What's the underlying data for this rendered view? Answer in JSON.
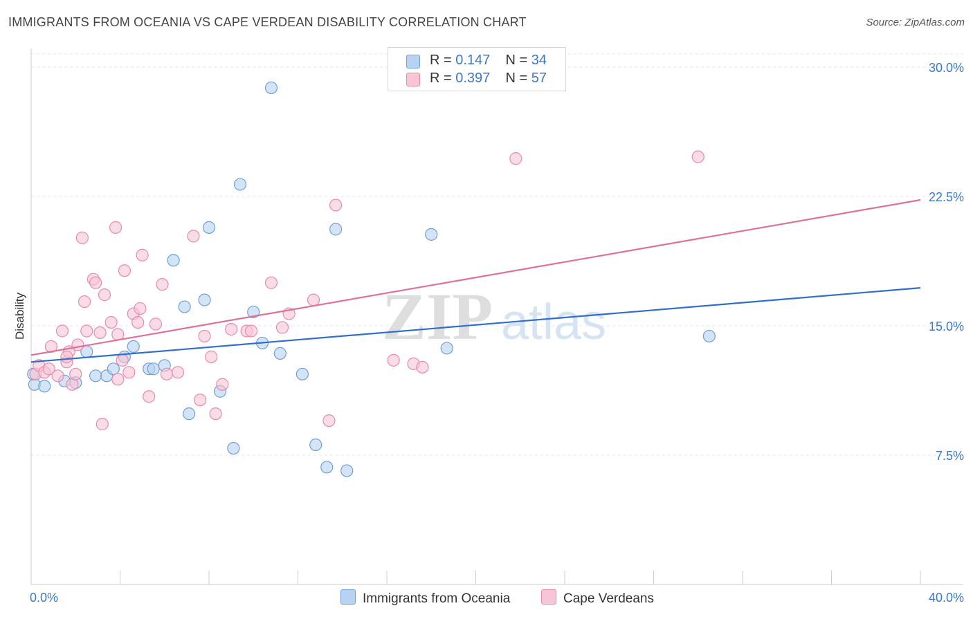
{
  "header": {
    "title": "IMMIGRANTS FROM OCEANIA VS CAPE VERDEAN DISABILITY CORRELATION CHART",
    "source": "Source: ZipAtlas.com"
  },
  "legend": {
    "r_label": "R =",
    "n_label": "N =",
    "rows": [
      {
        "r": "0.147",
        "n": "34"
      },
      {
        "r": "0.397",
        "n": "57"
      }
    ]
  },
  "watermark": {
    "zip": "ZIP",
    "atlas": "atlas"
  },
  "colors": {
    "blue_fill": "#b8d2f2",
    "blue_stroke": "#6f9fd8",
    "blue_line": "#2f6fcc",
    "pink_fill": "#f7c5d5",
    "pink_stroke": "#e98aaa",
    "pink_line": "#e07098",
    "grid": "#e4e4e4",
    "tick_text": "#3a78c9"
  },
  "chart_data": {
    "type": "scatter",
    "title": "IMMIGRANTS FROM OCEANIA VS CAPE VERDEAN DISABILITY CORRELATION CHART",
    "xlabel": "",
    "ylabel": "Disability",
    "xlim": [
      0,
      40
    ],
    "ylim": [
      0,
      32
    ],
    "x_tick_labels": {
      "min": "0.0%",
      "max": "40.0%"
    },
    "y_ticks": [
      {
        "value": 7.5,
        "label": "7.5%"
      },
      {
        "value": 15.0,
        "label": "15.0%"
      },
      {
        "value": 22.5,
        "label": "22.5%"
      },
      {
        "value": 30.0,
        "label": "30.0%"
      }
    ],
    "grid": true,
    "series": [
      {
        "name": "Immigrants from Oceania",
        "color": "#6f9fd8",
        "trend": {
          "x": [
            0,
            40
          ],
          "y": [
            12.9,
            17.2
          ]
        },
        "points": [
          [
            0.15,
            11.6
          ],
          [
            0.6,
            11.5
          ],
          [
            1.5,
            11.8
          ],
          [
            2.0,
            11.7
          ],
          [
            2.5,
            13.5
          ],
          [
            2.9,
            12.1
          ],
          [
            3.4,
            12.1
          ],
          [
            3.7,
            12.5
          ],
          [
            4.2,
            13.2
          ],
          [
            4.6,
            13.8
          ],
          [
            5.3,
            12.5
          ],
          [
            5.5,
            12.5
          ],
          [
            6.0,
            12.7
          ],
          [
            6.4,
            18.8
          ],
          [
            6.9,
            16.1
          ],
          [
            7.1,
            9.9
          ],
          [
            7.8,
            16.5
          ],
          [
            8.0,
            20.7
          ],
          [
            8.5,
            11.2
          ],
          [
            9.1,
            7.9
          ],
          [
            9.4,
            23.2
          ],
          [
            10.0,
            15.8
          ],
          [
            10.4,
            14.0
          ],
          [
            10.8,
            28.8
          ],
          [
            11.2,
            13.4
          ],
          [
            12.2,
            12.2
          ],
          [
            12.8,
            8.1
          ],
          [
            13.3,
            6.8
          ],
          [
            13.7,
            20.6
          ],
          [
            14.2,
            6.6
          ],
          [
            18.0,
            20.3
          ],
          [
            18.7,
            13.7
          ],
          [
            30.5,
            14.4
          ],
          [
            0.1,
            12.2
          ]
        ]
      },
      {
        "name": "Cape Verdeans",
        "color": "#e98aaa",
        "trend": {
          "x": [
            0,
            40
          ],
          "y": [
            13.3,
            22.3
          ]
        },
        "points": [
          [
            0.2,
            12.2
          ],
          [
            0.35,
            12.7
          ],
          [
            0.6,
            12.3
          ],
          [
            0.8,
            12.5
          ],
          [
            0.9,
            13.8
          ],
          [
            1.2,
            12.1
          ],
          [
            1.4,
            14.7
          ],
          [
            1.6,
            12.9
          ],
          [
            1.7,
            13.5
          ],
          [
            1.85,
            11.6
          ],
          [
            2.0,
            12.2
          ],
          [
            2.1,
            13.9
          ],
          [
            2.3,
            20.1
          ],
          [
            2.4,
            16.4
          ],
          [
            2.5,
            14.7
          ],
          [
            2.8,
            17.7
          ],
          [
            2.9,
            17.5
          ],
          [
            3.1,
            14.6
          ],
          [
            3.2,
            9.3
          ],
          [
            3.3,
            16.8
          ],
          [
            3.6,
            15.2
          ],
          [
            3.8,
            20.7
          ],
          [
            3.9,
            11.9
          ],
          [
            4.1,
            13.0
          ],
          [
            4.2,
            18.2
          ],
          [
            4.4,
            12.3
          ],
          [
            4.6,
            15.7
          ],
          [
            4.8,
            15.2
          ],
          [
            4.9,
            16.0
          ],
          [
            5.0,
            19.1
          ],
          [
            5.3,
            10.9
          ],
          [
            5.6,
            15.1
          ],
          [
            5.9,
            17.4
          ],
          [
            6.1,
            12.2
          ],
          [
            6.6,
            12.3
          ],
          [
            7.3,
            20.2
          ],
          [
            7.6,
            10.7
          ],
          [
            7.8,
            14.4
          ],
          [
            8.1,
            13.2
          ],
          [
            8.3,
            9.9
          ],
          [
            8.6,
            11.6
          ],
          [
            9.0,
            14.8
          ],
          [
            9.7,
            14.7
          ],
          [
            9.9,
            14.7
          ],
          [
            10.8,
            17.5
          ],
          [
            11.3,
            14.9
          ],
          [
            11.6,
            15.7
          ],
          [
            12.7,
            16.5
          ],
          [
            13.4,
            9.5
          ],
          [
            13.7,
            22.0
          ],
          [
            16.3,
            13.0
          ],
          [
            17.2,
            12.8
          ],
          [
            17.6,
            12.6
          ],
          [
            21.8,
            24.7
          ],
          [
            30.0,
            24.8
          ],
          [
            1.6,
            13.2
          ],
          [
            3.9,
            14.5
          ]
        ]
      }
    ]
  }
}
